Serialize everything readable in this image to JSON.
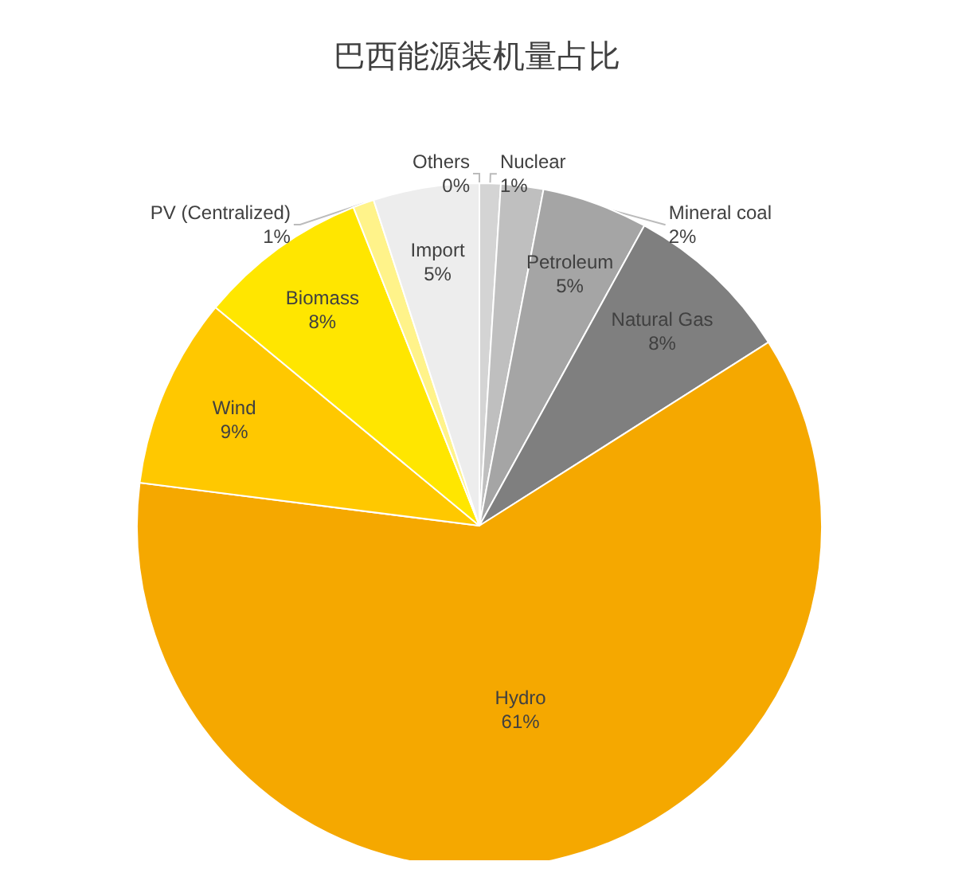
{
  "chart_data": {
    "type": "pie",
    "title": "巴西能源装机量占比",
    "categories": [
      "Nuclear",
      "Mineral coal",
      "Petroleum",
      "Natural Gas",
      "Hydro",
      "Wind",
      "Biomass",
      "PV (Centralized)",
      "Import",
      "Others"
    ],
    "values": [
      1,
      2,
      5,
      8,
      61,
      9,
      8,
      1,
      5,
      0
    ],
    "value_labels": [
      "1%",
      "2%",
      "5%",
      "8%",
      "61%",
      "9%",
      "8%",
      "1%",
      "5%",
      "0%"
    ],
    "colors": [
      "#d4d4d4",
      "#bfbfbf",
      "#a5a5a5",
      "#7f7f7f",
      "#f5a800",
      "#ffc800",
      "#ffe600",
      "#fff38a",
      "#ededed",
      "#ffffff"
    ],
    "legend": false
  }
}
